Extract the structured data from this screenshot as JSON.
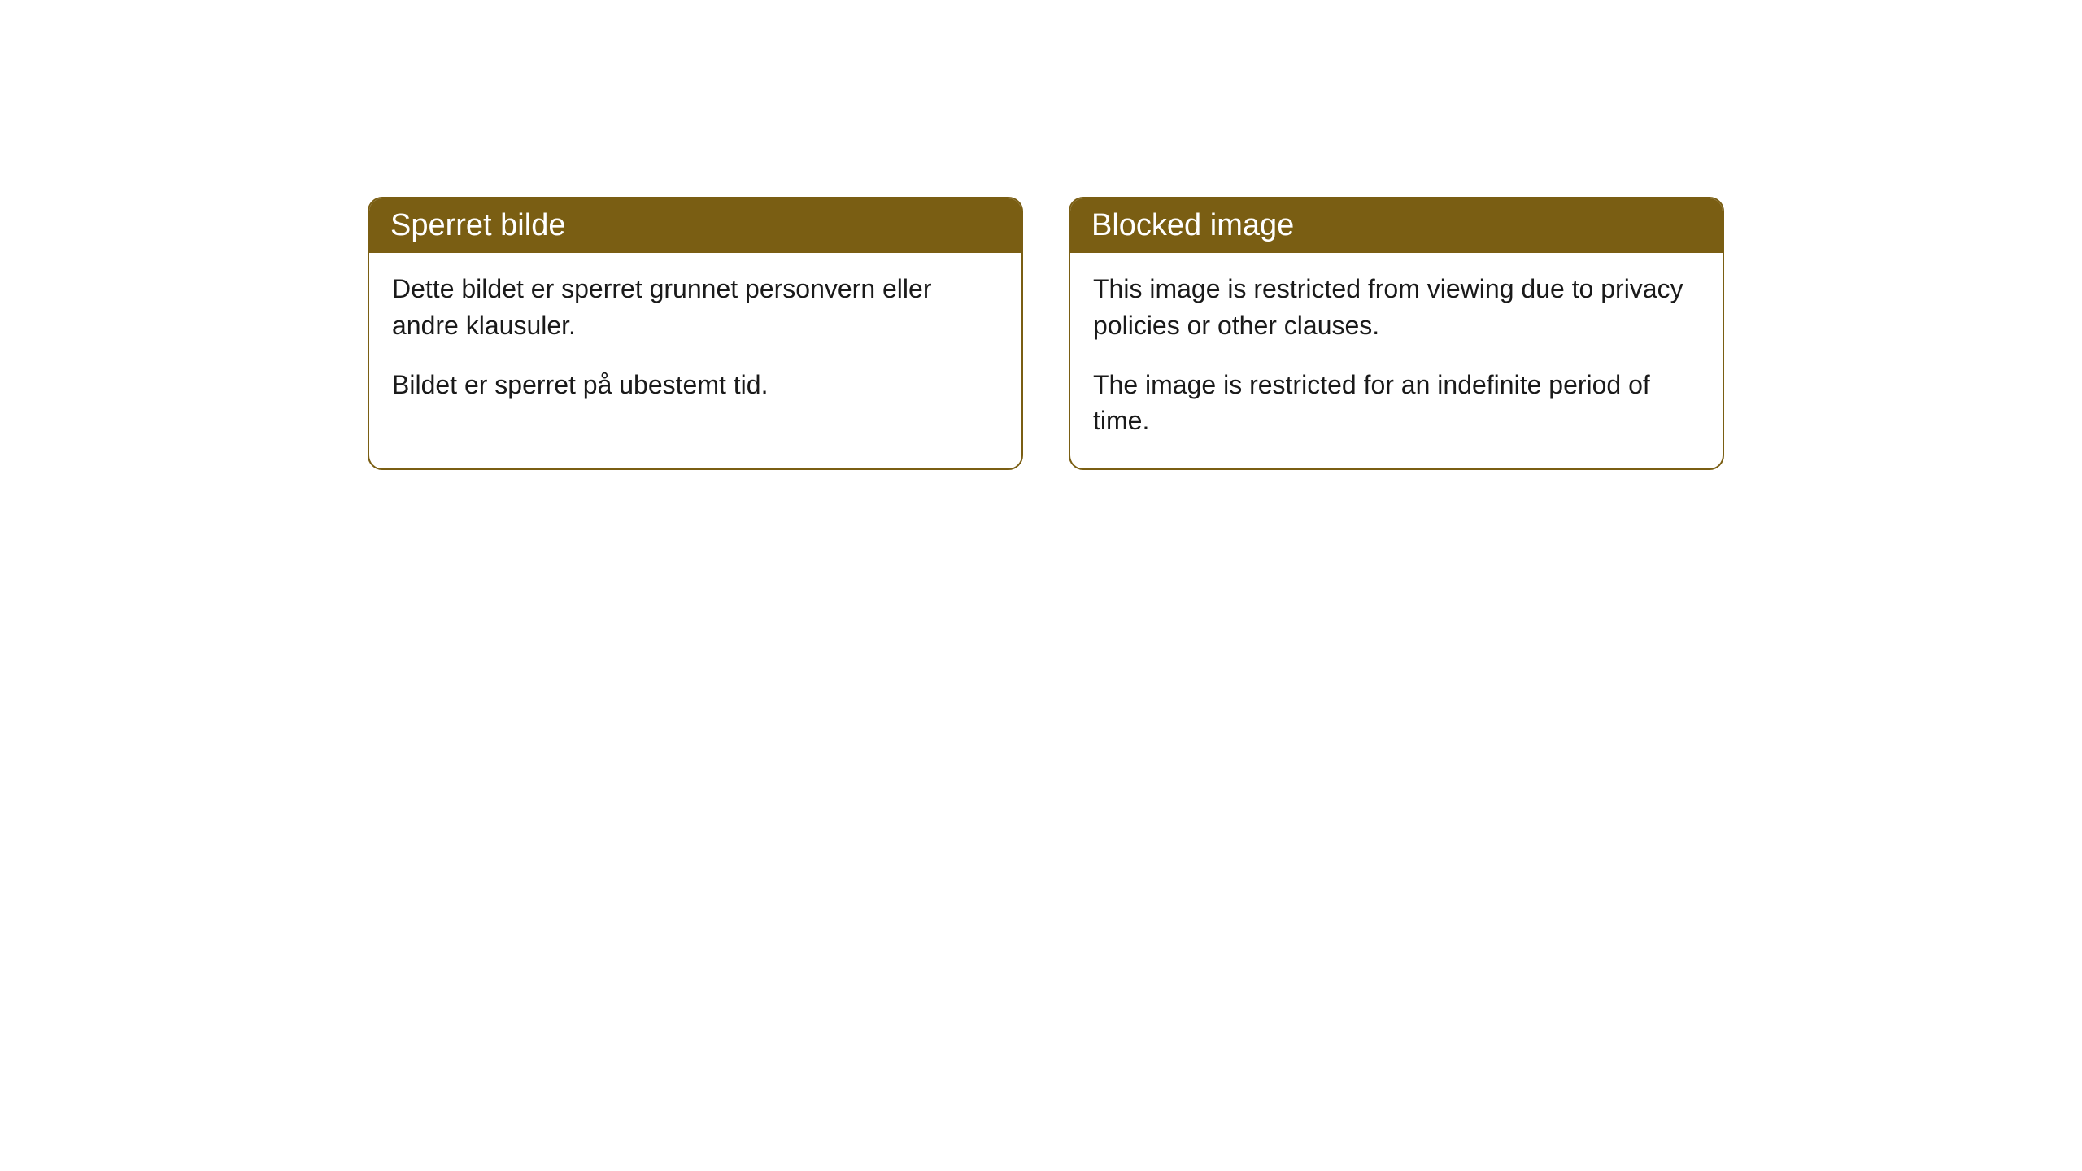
{
  "cards": [
    {
      "title": "Sperret bilde",
      "paragraph1": "Dette bildet er sperret grunnet personvern eller andre klausuler.",
      "paragraph2": "Bildet er sperret på ubestemt tid."
    },
    {
      "title": "Blocked image",
      "paragraph1": "This image is restricted from viewing due to privacy policies or other clauses.",
      "paragraph2": "The image is restricted for an indefinite period of time."
    }
  ],
  "styling": {
    "header_background_color": "#7a5e13",
    "header_text_color": "#ffffff",
    "border_color": "#7a5e13",
    "body_background_color": "#ffffff",
    "body_text_color": "#1a1a1a",
    "border_radius": "18px",
    "title_fontsize": 38,
    "body_fontsize": 32
  }
}
